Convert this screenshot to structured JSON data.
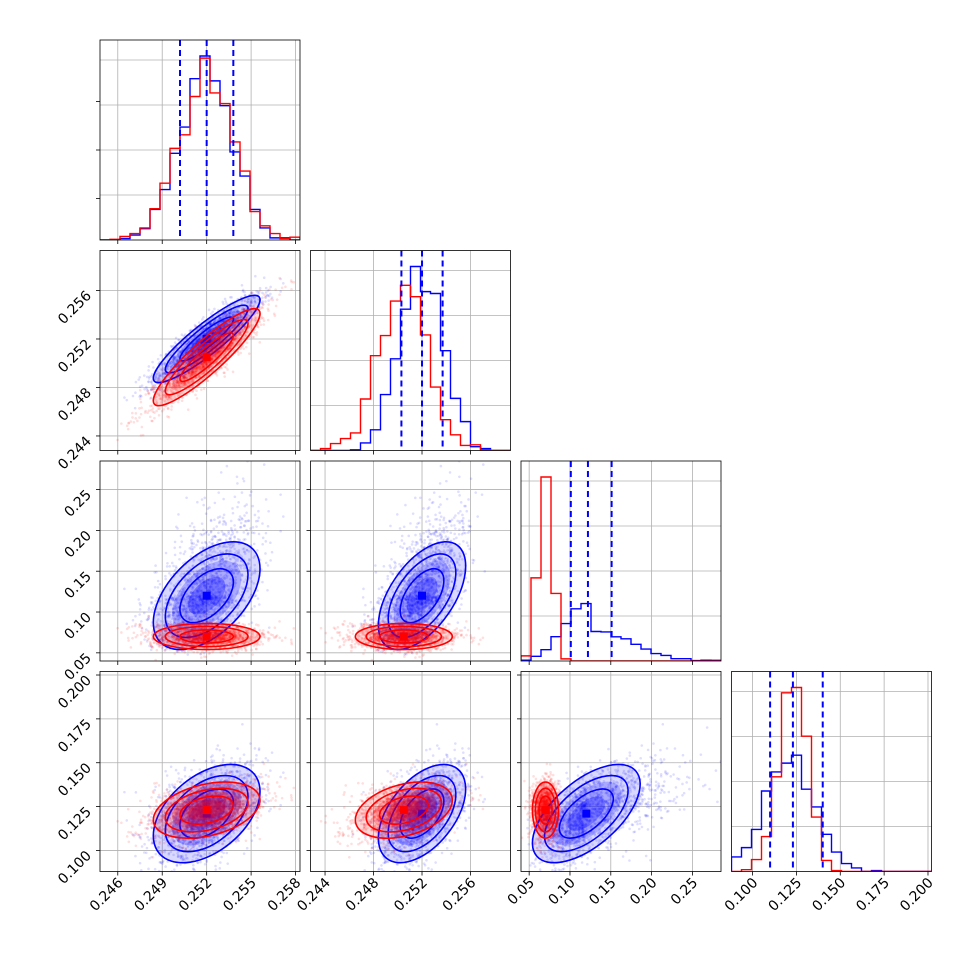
{
  "chart_data": {
    "type": "corner",
    "grid": true,
    "legend": "none",
    "colors": {
      "series_a": "#0000ff",
      "series_b": "#ff0000"
    },
    "series": [
      {
        "color": "#0000ff",
        "mean": [
          0.252,
          0.252,
          0.12,
          0.121
        ],
        "sd": [
          0.0018,
          0.0018,
          0.033,
          0.014
        ],
        "corr": [
          [
            1,
            0.9,
            0.5,
            0.45
          ],
          [
            0.9,
            1,
            0.55,
            0.5
          ],
          [
            0.5,
            0.55,
            1,
            0.6
          ],
          [
            0.45,
            0.5,
            0.6,
            1
          ]
        ]
      },
      {
        "color": "#ff0000",
        "mean": [
          0.252,
          0.2505,
          0.07,
          0.123
        ],
        "sd": [
          0.0018,
          0.002,
          0.008,
          0.008
        ],
        "corr": [
          [
            1,
            0.9,
            0.0,
            0.35
          ],
          [
            0.9,
            1,
            0.0,
            0.35
          ],
          [
            0.0,
            0.0,
            1,
            0.0
          ],
          [
            0.35,
            0.35,
            0.0,
            1
          ]
        ]
      }
    ],
    "quantile_lines": {
      "color": "#0000ff",
      "values": [
        [
          0.2502,
          0.252,
          0.2538
        ],
        [
          0.2503,
          0.252,
          0.2537
        ],
        [
          0.101,
          0.122,
          0.151
        ],
        [
          0.11,
          0.123,
          0.14
        ]
      ]
    },
    "axes": [
      {
        "range": [
          0.2448,
          0.2583
        ],
        "ticks": [
          0.246,
          0.249,
          0.252,
          0.255,
          0.258
        ],
        "tick_labels": [
          "0.246",
          "0.249",
          "0.252",
          "0.255",
          "0.258"
        ]
      },
      {
        "range": [
          0.2428,
          0.2593
        ],
        "ticks": [
          0.244,
          0.248,
          0.252,
          0.256
        ],
        "tick_labels": [
          "0.244",
          "0.248",
          "0.252",
          "0.256"
        ]
      },
      {
        "range": [
          0.04,
          0.285
        ],
        "ticks": [
          0.05,
          0.1,
          0.15,
          0.2,
          0.25
        ],
        "tick_labels": [
          "0.05",
          "0.10",
          "0.15",
          "0.20",
          "0.25"
        ]
      },
      {
        "range": [
          0.088,
          0.202
        ],
        "ticks": [
          0.1,
          0.125,
          0.15,
          0.175,
          0.2
        ],
        "tick_labels": [
          "0.100",
          "0.125",
          "0.150",
          "0.175",
          "0.200"
        ]
      }
    ]
  }
}
